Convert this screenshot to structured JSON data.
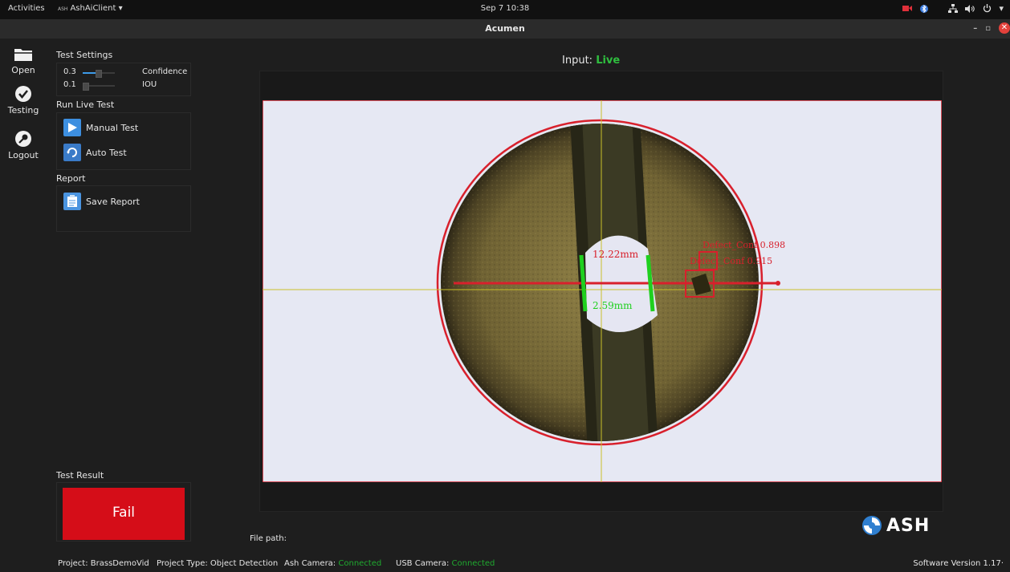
{
  "topbar": {
    "activities": "Activities",
    "app_prefix": "ASH",
    "app_menu": "AshAiClient ▾",
    "clock": "Sep 7 10:38",
    "tray_icons": [
      "camera-icon",
      "bluetooth-icon",
      "network-icon",
      "volume-icon",
      "power-icon"
    ]
  },
  "window": {
    "title": "Acumen",
    "minimize": "–",
    "maximize": "▫",
    "close": "✕"
  },
  "nav": {
    "open_label": "Open",
    "testing_label": "Testing",
    "logout_label": "Logout"
  },
  "settings": {
    "title": "Test Settings",
    "confidence_value": "0.3",
    "confidence_label": "Confidence",
    "confidence_level": 0.3,
    "iou_value": "0.1",
    "iou_label": "IOU",
    "iou_level": 0.1
  },
  "live_test": {
    "title": "Run Live Test",
    "manual_label": "Manual Test",
    "auto_label": "Auto Test"
  },
  "report": {
    "title": "Report",
    "save_label": "Save Report"
  },
  "result": {
    "title": "Test Result",
    "status": "Fail",
    "status_color": "#d50d18"
  },
  "viewer": {
    "input_prefix": "Input:",
    "input_value": "Live",
    "measure_top": "12.22mm",
    "measure_bottom": "2.59mm",
    "det1_label": "Defect_Conf 0.898",
    "det2_label": "Defect_Conf 0.915",
    "accent_red": "#d8202c",
    "accent_green": "#1fd01f"
  },
  "file_path_label": "File path:",
  "logo_text": "ASH",
  "status": {
    "project": "Project: BrassDemoVid",
    "project_type": "Project Type: Object Detection",
    "ash_camera_label": "Ash Camera:",
    "ash_camera_value": "Connected",
    "usb_camera_label": "USB Camera:",
    "usb_camera_value": "Connected",
    "version": "Software Version 1.17·"
  }
}
